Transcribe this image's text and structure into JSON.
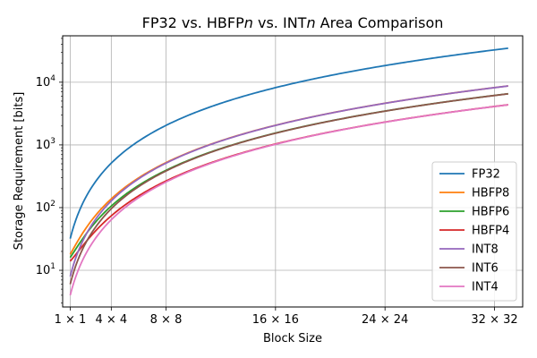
{
  "chart_data": {
    "type": "line",
    "title": "FP32 vs. HBFPn vs. INTn Area Comparison",
    "title_parts": [
      {
        "text": "FP32 vs. HBFP",
        "italic": false
      },
      {
        "text": "n",
        "italic": true
      },
      {
        "text": " vs. INT",
        "italic": false
      },
      {
        "text": "n",
        "italic": true
      },
      {
        "text": " Area Comparison",
        "italic": false
      }
    ],
    "xlabel": "Block Size",
    "ylabel": "Storage Requirement [bits]",
    "x_scale": "sqrt",
    "y_scale": "log",
    "xlim": [
      0.2,
      1160
    ],
    "ylim": [
      2.6,
      55000
    ],
    "x_ticks": [
      {
        "value": 1,
        "label": "1 × 1"
      },
      {
        "value": 16,
        "label": "4 × 4"
      },
      {
        "value": 64,
        "label": "8 × 8"
      },
      {
        "value": 256,
        "label": "16 × 16"
      },
      {
        "value": 576,
        "label": "24 × 24"
      },
      {
        "value": 1024,
        "label": "32 × 32"
      }
    ],
    "y_ticks": [
      {
        "value": 10,
        "label": "10^1"
      },
      {
        "value": 100,
        "label": "10^2"
      },
      {
        "value": 1000,
        "label": "10^3"
      },
      {
        "value": 10000,
        "label": "10^4"
      }
    ],
    "grid": true,
    "legend_position": "lower right",
    "x_range": [
      1,
      1089
    ],
    "series": [
      {
        "name": "FP32",
        "color": "#1f77b4",
        "bits_per_element": 32,
        "shared_bits": 0
      },
      {
        "name": "HBFP8",
        "color": "#ff7f0e",
        "bits_per_element": 8,
        "shared_bits": 10
      },
      {
        "name": "HBFP6",
        "color": "#2ca02c",
        "bits_per_element": 6,
        "shared_bits": 10
      },
      {
        "name": "HBFP4",
        "color": "#d62728",
        "bits_per_element": 4,
        "shared_bits": 10
      },
      {
        "name": "INT8",
        "color": "#9467bd",
        "bits_per_element": 8,
        "shared_bits": 0
      },
      {
        "name": "INT6",
        "color": "#8c564b",
        "bits_per_element": 6,
        "shared_bits": 0
      },
      {
        "name": "INT4",
        "color": "#e377c2",
        "bits_per_element": 4,
        "shared_bits": 0
      }
    ]
  }
}
